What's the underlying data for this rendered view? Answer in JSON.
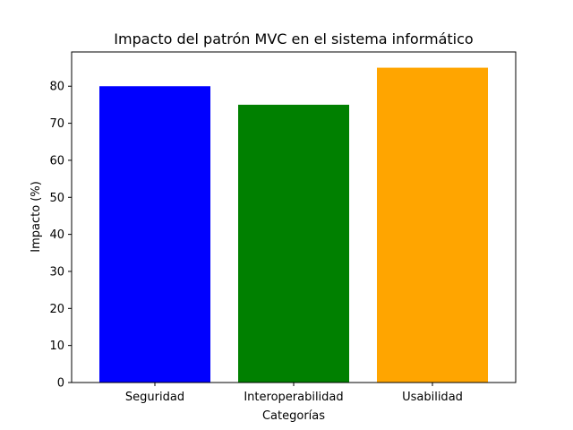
{
  "chart_data": {
    "type": "bar",
    "title": "Impacto del patrón MVC en el sistema informático",
    "xlabel": "Categorías",
    "ylabel": "Impacto (%)",
    "categories": [
      "Seguridad",
      "Interoperabilidad",
      "Usabilidad"
    ],
    "values": [
      80,
      75,
      85
    ],
    "colors": [
      "#0000ff",
      "#008000",
      "#ffa500"
    ],
    "ylim": [
      0,
      89.25
    ],
    "yticks": [
      0,
      10,
      20,
      30,
      40,
      50,
      60,
      70,
      80
    ],
    "grid": false,
    "legend": "none"
  }
}
